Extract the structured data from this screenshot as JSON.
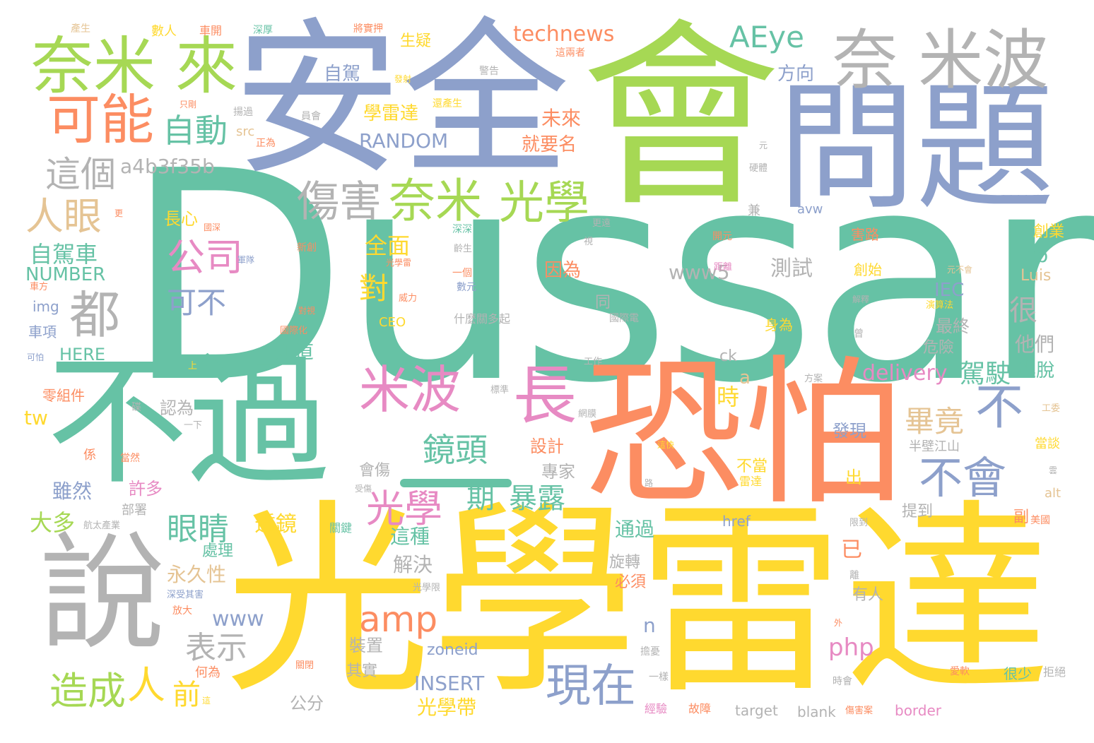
{
  "palette": {
    "teal": "#66c2a5",
    "orange": "#fc8d62",
    "blue": "#8da0cb",
    "pink": "#e78ac3",
    "green": "#a6d854",
    "yellow": "#ffd92f",
    "tan": "#e5c494",
    "gray": "#b3b3b3"
  },
  "words": {
    "dussan": "Dussan",
    "guangxue_leida": "光學雷達",
    "anquan": "安全",
    "hui": "會",
    "wenti": "問題",
    "buguo": "不過",
    "kongpa": "恐怕",
    "shuo": "說",
    "naimi_bo": "奈 米波",
    "naimi_lai": "奈米 來",
    "keneng": "可能",
    "zidong": "自動",
    "zhege": "這個",
    "a4b3": "a4b3f35b",
    "renyan": "人眼",
    "dou": "都",
    "shanghai": "傷害",
    "naimi": "奈米",
    "guangxue_1": "光學",
    "gongsi": "公司",
    "kebu": "可不",
    "mibo": "米波",
    "chang": "長",
    "jingtou": "鏡頭",
    "guangxue_2": "光學",
    "qi": "期",
    "baolu": "暴露",
    "yanjing": "眼睛",
    "zijiache": "自駕車",
    "number": "NUMBER",
    "aeye": "AEye",
    "technews": "technews",
    "random": "RANDOM",
    "zijia": "自駕",
    "fangxiang": "方向",
    "xueleida": "學雷達",
    "shengyi": "生疑",
    "weilai": "未來",
    "jiuyaoming": "就要名",
    "www5": "www5",
    "ceshi": "測試",
    "quanmian": "全面",
    "dui": "對",
    "yinwei": "因為",
    "hen": "很",
    "bijing": "畢竟",
    "bu": "不",
    "buhui": "不會",
    "delivery": "delivery",
    "jiashi": "駕駛",
    "taotuo": "逃脫",
    "tamen": "他們",
    "zuizhong": "最終",
    "weixian": "危險",
    "iec": "IEC",
    "cb": "cb",
    "luis": "Luis",
    "amp": "amp",
    "www": "www",
    "biaoshi": "表示",
    "zaocheng": "造成",
    "ren": "人",
    "qian": "前",
    "xianzai": "現在",
    "php": "php",
    "insert": "INSERT",
    "guangxuedai": "光學帶",
    "gongfen": "公分",
    "zhuangzhi": "裝置",
    "qishi": "其實",
    "zoneid": "zoneid",
    "target": "target",
    "blank": "blank",
    "border": "border",
    "href": "href",
    "alt": "alt",
    "tw": "tw",
    "img": "img",
    "ceo": "CEO",
    "here": "HERE",
    "chexiang": "車項",
    "renwei": "認為",
    "shi": "時",
    "faxian": "發現",
    "chu": "出",
    "sheji": "設計",
    "zhuanjia": "專家",
    "huishang": "會傷",
    "suiran": "雖然",
    "xuduo": "許多",
    "daduo": "大多",
    "toujing": "透鏡",
    "zhezhong": "這種",
    "jiejue": "解決",
    "chuli": "處理",
    "yongjiuxing": "永久性",
    "tongguo": "通過",
    "xuanzhuan": "旋轉",
    "bixu": "必須",
    "tidao": "提到",
    "yiyou": "已",
    "youren": "有人",
    "zhidao": "知道",
    "n": "n",
    "a": "a",
    "changxin": "長心",
    "bangjiang": "半壁江山",
    "budang": "不當",
    "leida": "雷達",
    "src": "src",
    "zhengwei": "正為",
    "avw": "avw",
    "ck": "ck",
    "shenwei": "身為",
    "tong": "同",
    "shenmeguan": "什麼關多起",
    "chuangye": "創業",
    "chuangshi": "創始",
    "hailu": "害路",
    "fu": "副",
    "meiguo": "美國",
    "dangtan": "當談",
    "henshao": "很少",
    "jujue": "拒絕",
    "gongsu": "工委",
    "lingzujian": "零組件",
    "xi": "係",
    "dangran": "當然",
    "bushu": "部署",
    "hangtai": "航太產業",
    "fangda": "放大",
    "heiwei": "何為",
    "kaiguan": "關閉",
    "jingyan": "經驗",
    "guzhang": "故障",
    "shanghaian": "傷害案",
    "shihui": "時會",
    "shouruan": "愛軟",
    "yiyang": "一樣",
    "bianyao": "擔憂",
    "guangxuexian": "光學限",
    "shenshoushang": "深受其害",
    "guanjian": "關鍵",
    "shendu": "深厚",
    "jiangshi": "將實押",
    "fashe": "發射",
    "zhe_liang": "這兩者",
    "jinggao": "警告",
    "yuanchan": "還產生",
    "zhiyou": "只剛",
    "yuanhui": "員會",
    "jingguo": "揚過",
    "yuan": "元",
    "yingti": "硬體",
    "jian": "兼",
    "gengyuan": "更遠",
    "shenshen": "深深",
    "kaiguang": "開元",
    "xinchuang": "新創",
    "guangxueli": "光學雷",
    "yige": "一個",
    "shuyuan": "數元",
    "weili": "威力",
    "guojihua": "國際化",
    "duizhang": "對視",
    "juli": "距離",
    "jieshi": "解釋",
    "suanfa": "演算法",
    "yuanbuhui": "元不會",
    "zeng": "曾",
    "gongzuo": "工作",
    "fangan": "方案",
    "biaozhun": "標準",
    "dian": "碟",
    "yixia": "一下",
    "wangmo": "網膜",
    "zheyang": "這快",
    "shouxiang": "受傷",
    "lu": "路",
    "xianzhi": "限到",
    "li": "離",
    "wai": "外",
    "guoji": "國際電",
    "lingsheng": "齡生",
    "shi2": "視",
    "chanshen": "產生",
    "shuren": "數人",
    "chejian": "車開",
    "kebo": "可怕",
    "shang": "上",
    "geng": "更",
    "chefang": "車方",
    "junshi": "軍隊",
    "guoshen": "國深",
    "yun": "雲",
    "juben": "這"
  }
}
